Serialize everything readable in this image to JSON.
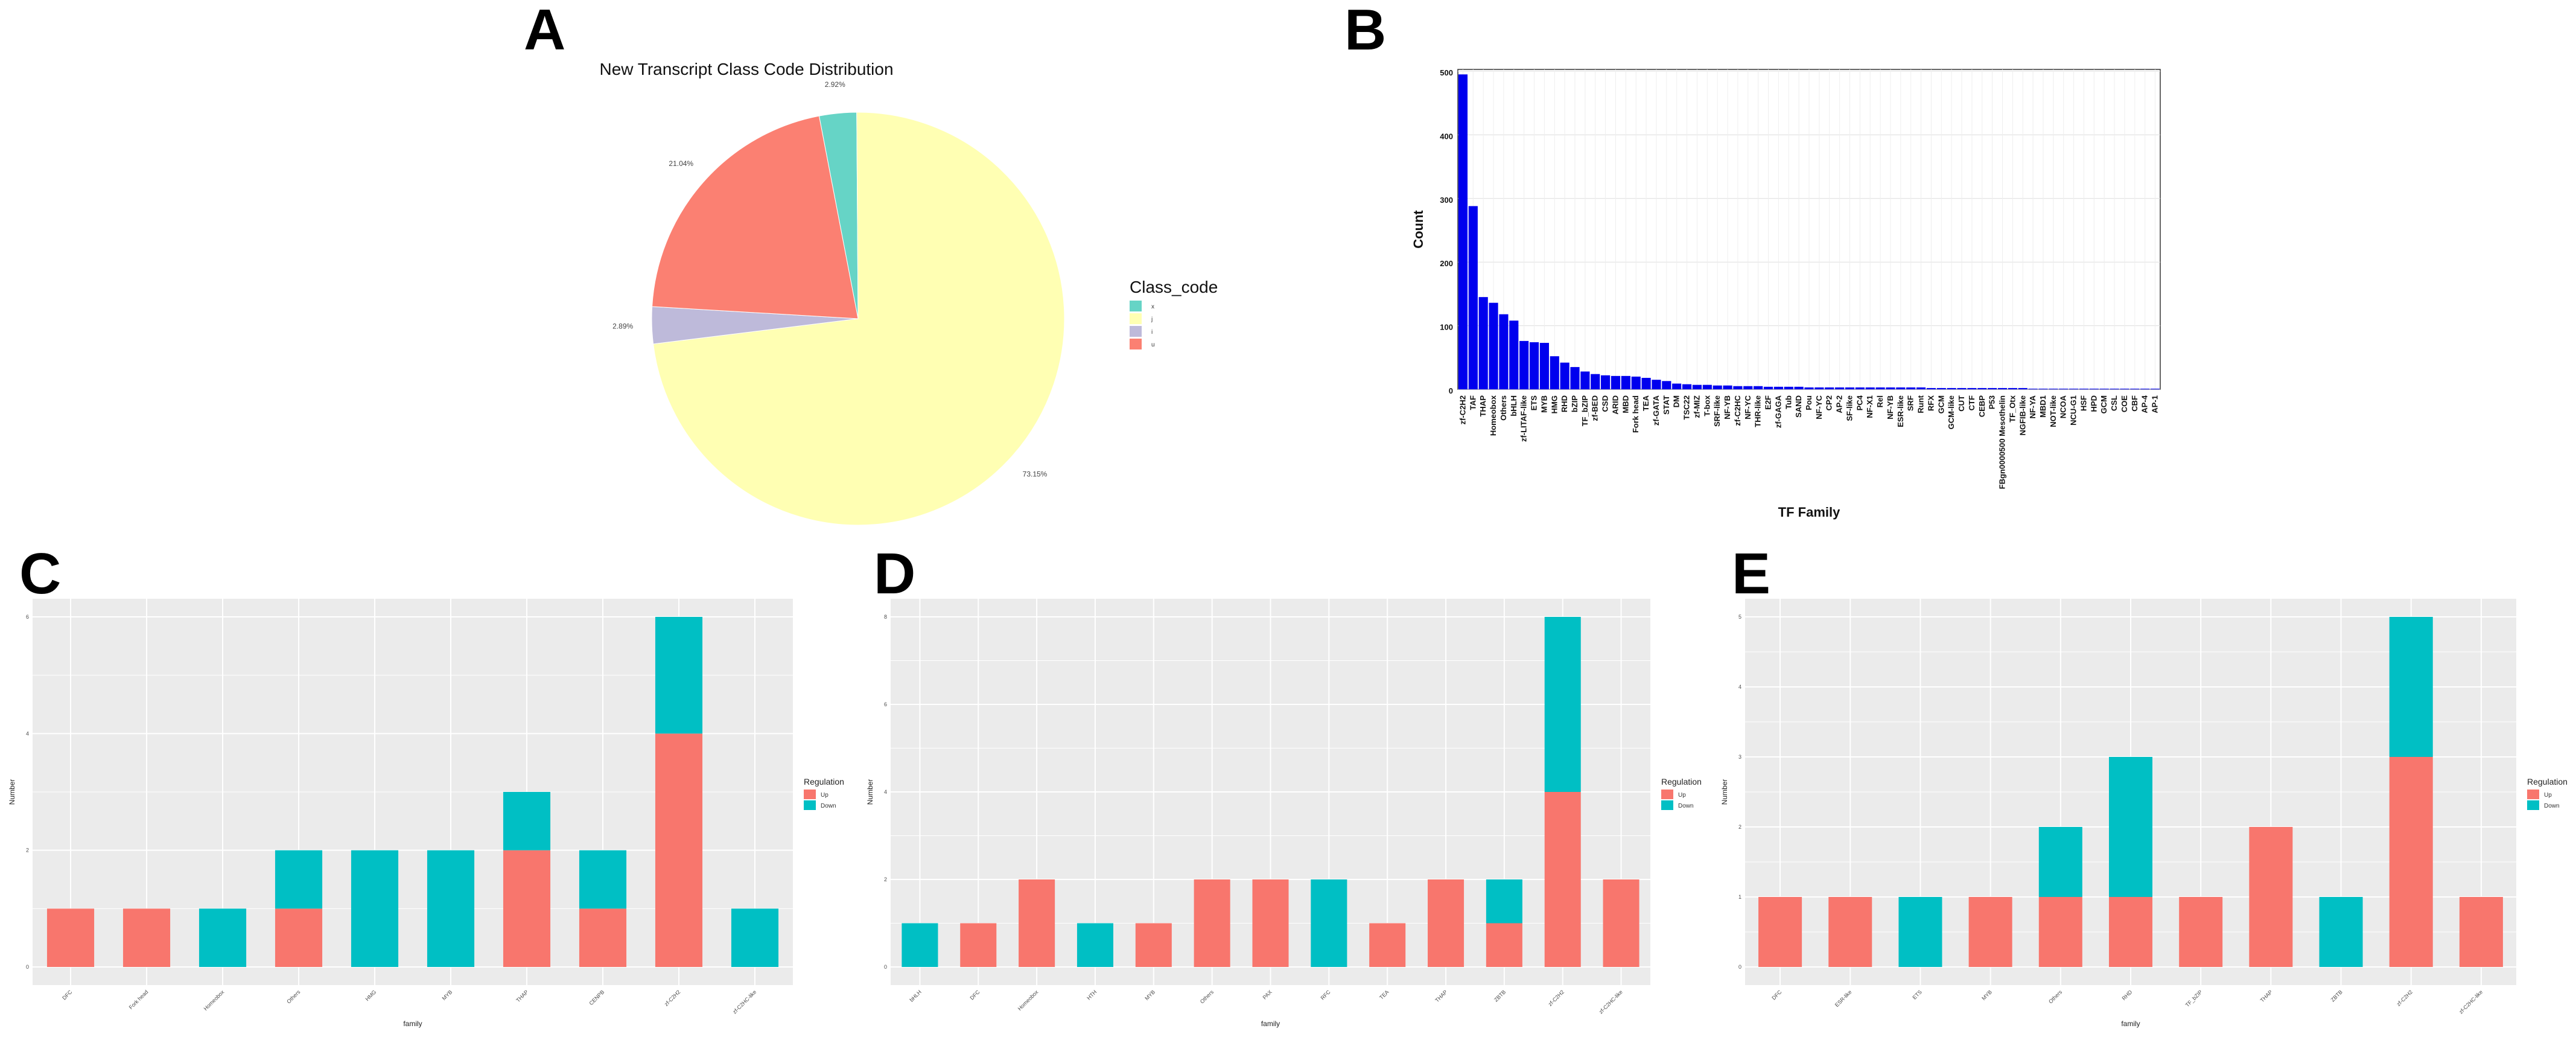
{
  "colors": {
    "up": "#F8766D",
    "down": "#00BFC4",
    "tf_bar": "#0000EE",
    "pie": [
      "#66D4C6",
      "#FFFFB3",
      "#BEBADA",
      "#FB8072"
    ]
  },
  "chart_data": [
    {
      "id": "A",
      "type": "pie",
      "title": "New Transcript Class Code Distribution",
      "legend_title": "Class_code",
      "legend_position": "right",
      "labels": [
        "x",
        "j",
        "i",
        "u"
      ],
      "values": [
        2.92,
        73.15,
        2.89,
        21.04
      ],
      "value_labels": [
        "2.92%",
        "73.15%",
        "2.89%",
        "21.04%"
      ]
    },
    {
      "id": "B",
      "type": "bar",
      "title": "",
      "xlabel": "TF Family",
      "ylabel": "Count",
      "ylim": [
        0,
        500
      ],
      "yticks": [
        0,
        100,
        200,
        300,
        400,
        500
      ],
      "categories": [
        "zf-C2H2",
        "TAF",
        "THAP",
        "Homeobox",
        "Others",
        "bHLH",
        "zf-LITAF-like",
        "ETS",
        "MYB",
        "HMG",
        "RHD",
        "bZIP",
        "TF_bZIP",
        "zf-BED",
        "CSD",
        "ARID",
        "MBD",
        "Fork head",
        "TEA",
        "zf-GATA",
        "STAT",
        "DM",
        "TSC22",
        "zf-MIZ",
        "T-box",
        "SRF-like",
        "NF-YB",
        "zf-C2HC",
        "NF-YC",
        "THR-like",
        "E2F",
        "zf-GAGA",
        "Tub",
        "SAND",
        "Pou",
        "NF-YC",
        "CP2",
        "AP-2",
        "SF-like",
        "PC4",
        "NF-X1",
        "Rel",
        "NF-YB",
        "ESR-like",
        "SRF",
        "Runt",
        "RFX",
        "GCM",
        "GCM-like",
        "CUT",
        "CTF",
        "CEBP",
        "P53",
        "FBgn0000500 Mesothelin",
        "TF_Otx",
        "NGFIB-like",
        "NF-YA",
        "MBD1",
        "NOT-like",
        "NCOA",
        "NCU-G1",
        "HSF",
        "HPD",
        "GCM",
        "CSL",
        "COE",
        "CBF",
        "AP-4",
        "AP-1"
      ],
      "values": [
        495,
        288,
        145,
        136,
        118,
        108,
        76,
        74,
        73,
        52,
        42,
        35,
        28,
        24,
        22,
        21,
        21,
        20,
        18,
        15,
        13,
        9,
        8,
        7,
        7,
        6,
        6,
        5,
        5,
        5,
        4,
        4,
        4,
        4,
        3,
        3,
        3,
        3,
        3,
        3,
        3,
        3,
        3,
        3,
        3,
        3,
        2,
        2,
        2,
        2,
        2,
        2,
        2,
        2,
        2,
        2,
        1,
        1,
        1,
        1,
        1,
        1,
        1,
        1,
        1,
        1,
        1,
        1,
        1
      ]
    },
    {
      "id": "C",
      "type": "bar",
      "stacked": true,
      "xlabel": "family",
      "ylabel": "Number",
      "ylim": [
        0,
        6
      ],
      "yticks": [
        0,
        2,
        4,
        6
      ],
      "legend_title": "Regulation",
      "legend_position": "right",
      "categories": [
        "DFC",
        "Fork head",
        "Homeobox",
        "Others",
        "HMG",
        "MYB",
        "THAP",
        "CENPB",
        "zf-C2H2",
        "zf-C2HC-like"
      ],
      "series": [
        {
          "name": "Up",
          "values": [
            1,
            1,
            0,
            1,
            0,
            0,
            2,
            1,
            4,
            0
          ]
        },
        {
          "name": "Down",
          "values": [
            0,
            0,
            1,
            1,
            2,
            2,
            1,
            1,
            2,
            1
          ]
        }
      ]
    },
    {
      "id": "D",
      "type": "bar",
      "stacked": true,
      "xlabel": "family",
      "ylabel": "Number",
      "ylim": [
        0,
        8
      ],
      "yticks": [
        0,
        2,
        4,
        6,
        8
      ],
      "legend_title": "Regulation",
      "legend_position": "right",
      "categories": [
        "bHLH",
        "DFC",
        "Homeobox",
        "HTH",
        "MYB",
        "Others",
        "PAX",
        "RFC",
        "TEA",
        "THAP",
        "ZBTB",
        "zf-C2H2",
        "zf-C2HC-like"
      ],
      "series": [
        {
          "name": "Up",
          "values": [
            0,
            1,
            2,
            0,
            1,
            2,
            2,
            0,
            1,
            2,
            1,
            4,
            2
          ]
        },
        {
          "name": "Down",
          "values": [
            1,
            0,
            0,
            1,
            0,
            0,
            0,
            2,
            0,
            0,
            1,
            4,
            0
          ]
        }
      ]
    },
    {
      "id": "E",
      "type": "bar",
      "stacked": true,
      "xlabel": "family",
      "ylabel": "Number",
      "ylim": [
        0,
        5
      ],
      "yticks": [
        0,
        1,
        2,
        3,
        4,
        5
      ],
      "legend_title": "Regulation",
      "legend_position": "right",
      "categories": [
        "DFC",
        "ESR-like",
        "ETS",
        "MYB",
        "Others",
        "RHD",
        "TF_bZIP",
        "THAP",
        "ZBTB",
        "zf-C2H2",
        "zf-C2HC-like"
      ],
      "series": [
        {
          "name": "Up",
          "values": [
            1,
            1,
            0,
            1,
            1,
            1,
            1,
            2,
            0,
            3,
            1
          ]
        },
        {
          "name": "Down",
          "values": [
            0,
            0,
            1,
            0,
            1,
            2,
            0,
            0,
            1,
            2,
            0
          ]
        }
      ]
    }
  ]
}
